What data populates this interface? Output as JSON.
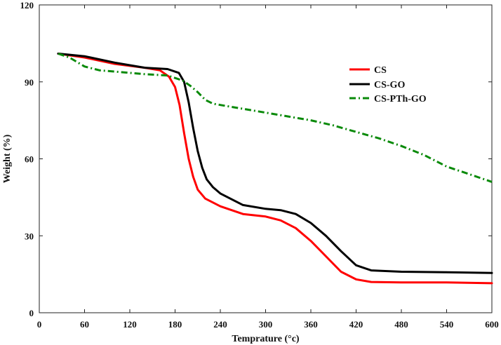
{
  "chart_data": {
    "type": "line",
    "title": "",
    "xlabel": "Temprature (°c)",
    "ylabel": "Weight (%)",
    "xlim": [
      0,
      600
    ],
    "ylim": [
      0,
      120
    ],
    "xticks": [
      0,
      60,
      120,
      180,
      240,
      300,
      360,
      420,
      480,
      540,
      600
    ],
    "yticks": [
      0,
      30,
      60,
      90,
      120
    ],
    "xtick_labels": [
      "0",
      "60",
      "120",
      "180",
      "240",
      "300",
      "360",
      "420",
      "480",
      "540",
      "600"
    ],
    "ytick_labels": [
      "0",
      "30",
      "60",
      "90",
      "120"
    ],
    "grid": false,
    "legend_position": "top-right",
    "series": [
      {
        "name": "CS",
        "color": "#ff0000",
        "style": "solid",
        "x": [
          25,
          60,
          100,
          140,
          160,
          172,
          180,
          186,
          192,
          198,
          204,
          210,
          220,
          240,
          270,
          300,
          320,
          340,
          360,
          380,
          400,
          420,
          440,
          480,
          540,
          600
        ],
        "y": [
          101,
          99.5,
          97,
          95.5,
          94.5,
          92,
          88,
          81,
          70,
          60,
          53,
          48,
          44.5,
          41.5,
          38.5,
          37.5,
          36,
          33,
          28,
          22,
          16,
          13,
          12,
          11.8,
          11.8,
          11.5
        ]
      },
      {
        "name": "CS-GO",
        "color": "#000000",
        "style": "solid",
        "x": [
          25,
          60,
          100,
          140,
          170,
          185,
          192,
          198,
          204,
          210,
          216,
          222,
          230,
          240,
          270,
          300,
          320,
          340,
          360,
          380,
          400,
          420,
          440,
          480,
          540,
          600
        ],
        "y": [
          101,
          100,
          97.5,
          95.5,
          95,
          93.5,
          90,
          82,
          72,
          63,
          56.5,
          52,
          49,
          46.5,
          42,
          40.5,
          40,
          38.5,
          35,
          30,
          24,
          18.5,
          16.5,
          16,
          15.8,
          15.5
        ]
      },
      {
        "name": "CS-PTh-GO",
        "color": "#0a8a0a",
        "style": "dashdot",
        "x": [
          25,
          40,
          60,
          80,
          100,
          140,
          170,
          190,
          200,
          210,
          220,
          230,
          240,
          270,
          300,
          330,
          360,
          390,
          420,
          450,
          480,
          510,
          540,
          570,
          600
        ],
        "y": [
          101,
          99.5,
          96,
          94.5,
          94,
          93,
          92.5,
          90.5,
          88.5,
          86,
          83,
          81.5,
          81,
          79.5,
          78,
          76.5,
          75,
          73,
          70.5,
          68,
          65,
          61.5,
          57,
          54,
          51
        ]
      }
    ]
  }
}
